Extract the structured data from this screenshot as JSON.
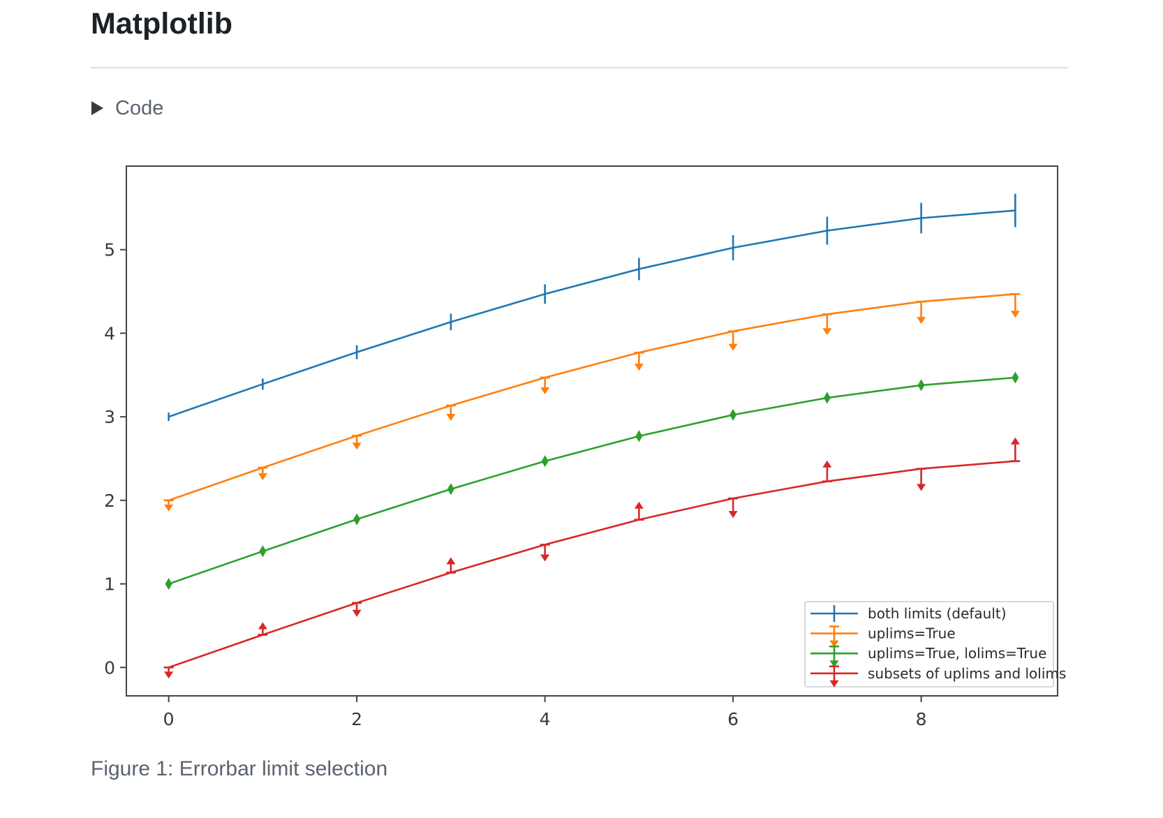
{
  "header": {
    "title": "Matplotlib"
  },
  "code_section": {
    "label": "Code",
    "collapsed": true,
    "disclosure_icon": "triangle-right"
  },
  "figure": {
    "caption": "Figure 1: Errorbar limit selection"
  },
  "chart_data": {
    "type": "line",
    "subtype": "errorbar",
    "title": "",
    "xlabel": "",
    "ylabel": "",
    "grid": false,
    "x": [
      0,
      1,
      2,
      3,
      4,
      5,
      6,
      7,
      8,
      9
    ],
    "yerr": [
      0.05,
      0.067,
      0.083,
      0.1,
      0.117,
      0.133,
      0.15,
      0.167,
      0.183,
      0.2
    ],
    "series": [
      {
        "name": "both limits (default)",
        "color": "#1f77b4",
        "limit_style": "both-bars",
        "values": [
          3.0,
          3.391,
          3.773,
          4.135,
          4.469,
          4.768,
          5.023,
          5.227,
          5.378,
          5.469
        ]
      },
      {
        "name": "uplims=True",
        "color": "#ff7f0e",
        "limit_style": "uplims",
        "values": [
          2.0,
          2.391,
          2.773,
          3.135,
          3.469,
          3.768,
          4.023,
          4.227,
          4.378,
          4.469
        ]
      },
      {
        "name": "uplims=True, lolims=True",
        "color": "#2ca02c",
        "limit_style": "uplims-lolims",
        "values": [
          1.0,
          1.391,
          1.773,
          2.135,
          2.469,
          2.768,
          3.023,
          3.227,
          3.378,
          3.469
        ]
      },
      {
        "name": "subsets of uplims and lolims",
        "color": "#d62728",
        "limit_style": "alternating",
        "uplims": [
          true,
          false,
          true,
          false,
          true,
          false,
          true,
          false,
          true,
          false
        ],
        "lolims": [
          false,
          true,
          false,
          true,
          false,
          true,
          false,
          true,
          false,
          true
        ],
        "values": [
          0.0,
          0.391,
          0.773,
          1.135,
          1.469,
          1.768,
          2.023,
          2.227,
          2.378,
          2.469
        ]
      }
    ],
    "xticks": [
      0,
      2,
      4,
      6,
      8
    ],
    "yticks": [
      0,
      1,
      2,
      3,
      4,
      5
    ],
    "xlim": [
      -0.45,
      9.45
    ],
    "ylim": [
      -0.34,
      6.0
    ],
    "axis_color": "#444444",
    "tick_label_color": "#3a3a3a",
    "legend": {
      "position": "lower right",
      "border_color": "#cccccc",
      "background": "#ffffff"
    }
  }
}
